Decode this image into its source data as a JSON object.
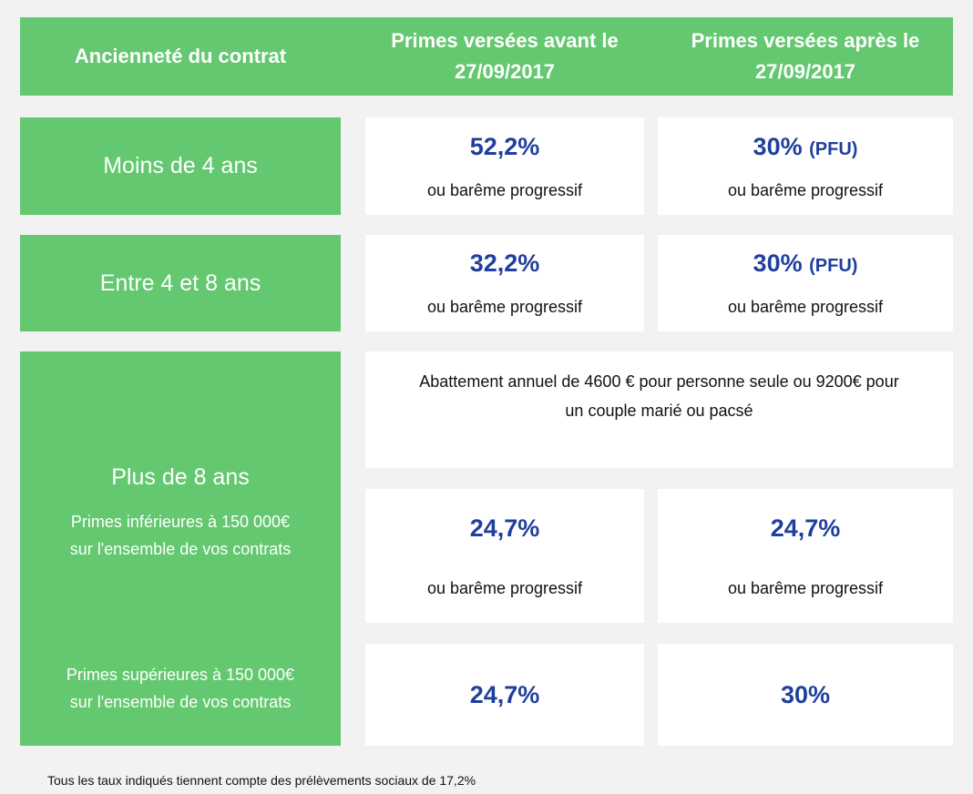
{
  "colors": {
    "green": "#63c86f",
    "blue": "#1f3f9e",
    "background": "#f2f2f2"
  },
  "header": {
    "col1": "Ancienneté du contrat",
    "col2_line1": "Primes versées avant le",
    "col2_line2": "27/09/2017",
    "col3_line1": "Primes versées après le",
    "col3_line2": "27/09/2017"
  },
  "rows": [
    {
      "label": "Moins de 4 ans",
      "before_rate": "52,2%",
      "before_note": "ou barême progressif",
      "after_rate": "30%",
      "after_suffix": "(PFU)",
      "after_note": "ou barême progressif"
    },
    {
      "label": "Entre 4 et 8 ans",
      "before_rate": "32,2%",
      "before_note": "ou barême progressif",
      "after_rate": "30%",
      "after_suffix": "(PFU)",
      "after_note": "ou barême progressif"
    }
  ],
  "over8": {
    "label": "Plus de 8 ans",
    "abattement_line1": "Abattement annuel de 4600 € pour personne seule ou 9200€ pour",
    "abattement_line2": "un couple marié ou pacsé",
    "inf": {
      "label_line1": "Primes inférieures à 150 000€",
      "label_line2": "sur l'ensemble de vos contrats",
      "before_rate": "24,7%",
      "before_note": "ou barême progressif",
      "after_rate": "24,7%",
      "after_note": "ou barême progressif"
    },
    "sup": {
      "label_line1": "Primes supérieures à 150 000€",
      "label_line2": "sur l'ensemble de vos contrats",
      "before_rate": "24,7%",
      "after_rate": "30%"
    }
  },
  "footer": "Tous les taux indiqués tiennent compte des prélèvements sociaux de 17,2%"
}
